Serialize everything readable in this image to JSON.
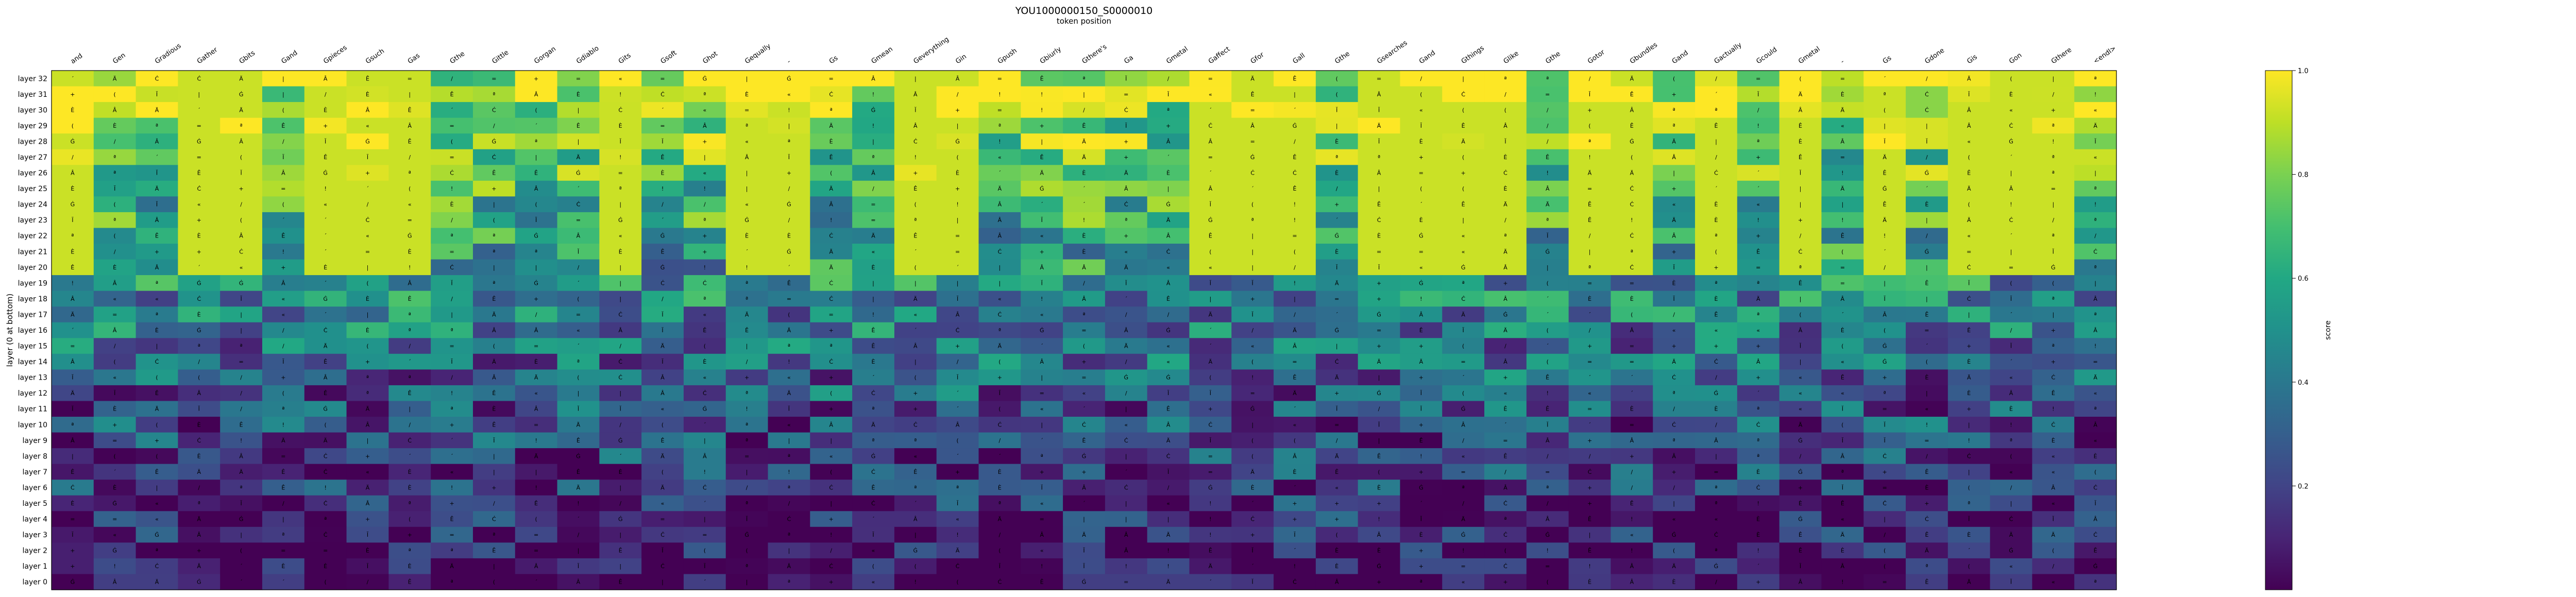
{
  "chart_data": {
    "type": "heatmap",
    "title": "YOU1000000150_S0000010",
    "subtitle": "token position",
    "xlabel": "token position",
    "ylabel": "layer (0 at bottom)",
    "colorbar_label": "score",
    "colormap": "viridis",
    "vmin": 0.0,
    "vmax": 1.0,
    "colorbar_ticks": [
      0.2,
      0.4,
      0.6,
      0.8,
      1.0
    ],
    "x_tokens": [
      "and",
      "Gen",
      "Gradious",
      "Gather",
      "Gbits",
      "Gand",
      "Gpieces",
      "Gsuch",
      "Gas",
      "Gthe",
      "Gittle",
      "Gorgan",
      "Gdiablo",
      "Gits",
      "Gsoft",
      "Ghot",
      "Gequally",
      "-",
      "Gs",
      "Gmean",
      "Geverything",
      "Gin",
      "Gpush",
      "Gbiurly",
      "Gthere's",
      "Ga",
      "Gmetal",
      "Gaffect",
      "Gfor",
      "Gall",
      "Gthe",
      "Gsearches",
      "Gand",
      "Gthings",
      "Glike",
      "Gthe",
      "Gotor",
      "Gbundles",
      "Gand",
      "Gactually",
      "Gcould",
      "Gmetal",
      "-",
      "Gs",
      "Gdone",
      "Gis",
      "Gon",
      "Gthere",
      "<endl>"
    ],
    "y_layers": [
      "layer 32",
      "layer 31",
      "layer 30",
      "layer 29",
      "layer 28",
      "layer 27",
      "layer 26",
      "layer 25",
      "layer 24",
      "layer 23",
      "layer 22",
      "layer 21",
      "layer 20",
      "layer 19",
      "layer 18",
      "layer 17",
      "layer 16",
      "layer 15",
      "layer 14",
      "layer 13",
      "layer 12",
      "layer 11",
      "layer 10",
      "layer 9",
      "layer 8",
      "layer 7",
      "layer 6",
      "layer 5",
      "layer 4",
      "layer 3",
      "layer 2",
      "layer 1",
      "layer 0"
    ],
    "cell_symbols": [
      "Ä",
      "=",
      "|",
      "Ġ",
      "Ċ",
      "!",
      "«",
      "(",
      "/",
      "Ĭ",
      "+",
      "Ê",
      "Â",
      "´",
      "ª",
      "È"
    ]
  }
}
